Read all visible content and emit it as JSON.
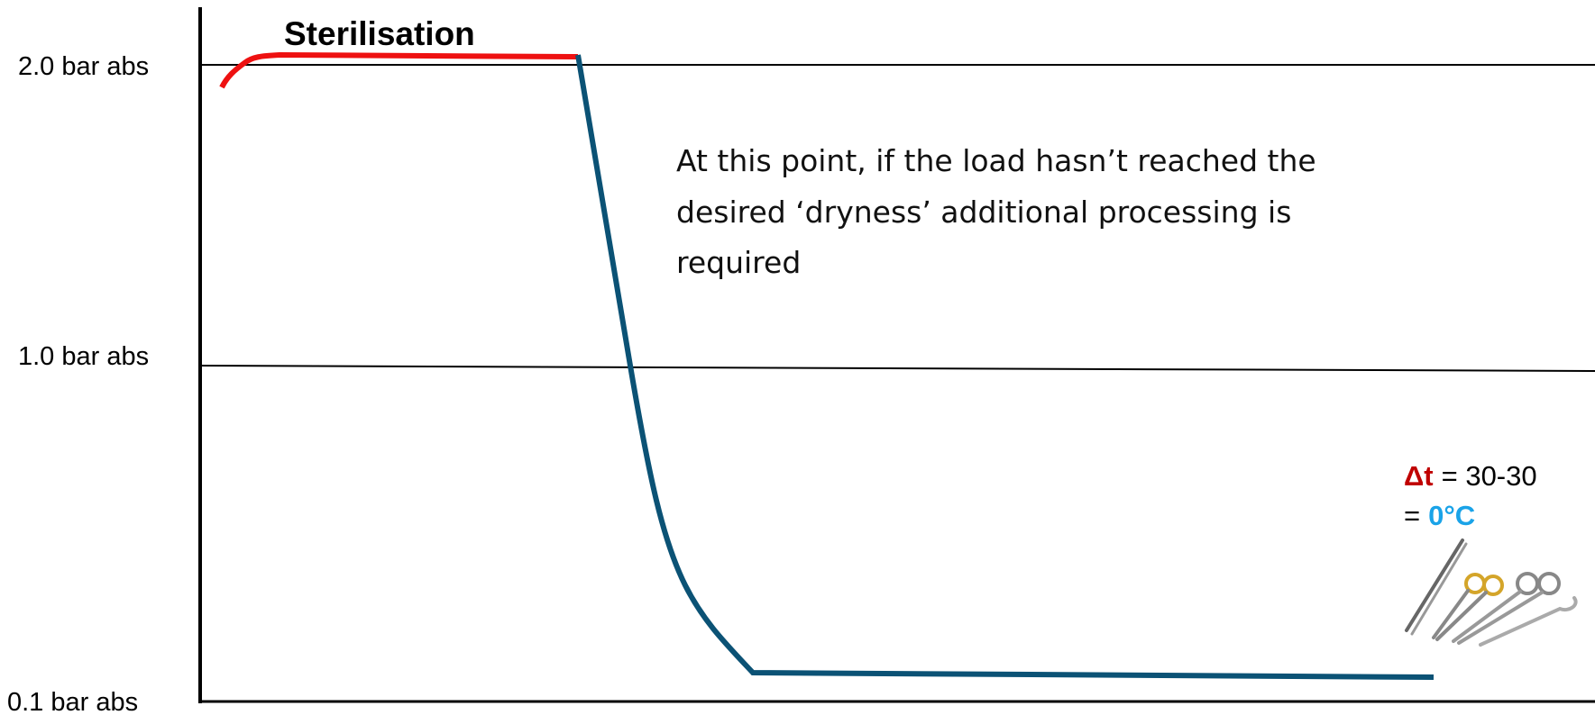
{
  "axis_labels": [
    "2.0 bar abs",
    "1.0 bar abs",
    "0.1 bar abs"
  ],
  "phase_label": "Sterilisation",
  "annotation": {
    "lines": [
      "At this point, if the load hasn’t reached the",
      "desired ‘dryness’ additional processing is",
      "required"
    ]
  },
  "delta": {
    "symbol": "Δt",
    "expression": "= 30-30",
    "equals": "=",
    "result": "0°C"
  }
}
